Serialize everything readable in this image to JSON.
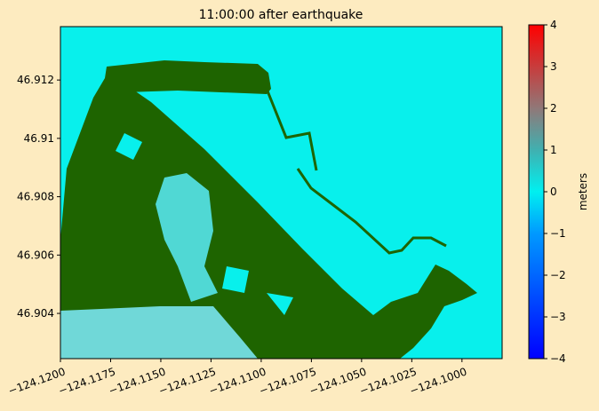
{
  "chart_data": {
    "type": "heatmap",
    "title": "11:00:00 after earthquake",
    "xlim": [
      -124.12,
      -124.098
    ],
    "xticks": [
      {
        "value": -124.12,
        "label": "−124.1200"
      },
      {
        "value": -124.1175,
        "label": "−124.1175"
      },
      {
        "value": -124.115,
        "label": "−124.1150"
      },
      {
        "value": -124.1125,
        "label": "−124.1125"
      },
      {
        "value": -124.11,
        "label": "−124.1100"
      },
      {
        "value": -124.1075,
        "label": "−124.1075"
      },
      {
        "value": -124.105,
        "label": "−124.1050"
      },
      {
        "value": -124.1025,
        "label": "−124.1025"
      },
      {
        "value": -124.1,
        "label": "−124.1000"
      }
    ],
    "ylim": [
      46.90245,
      46.91383
    ],
    "yticks": [
      46.904,
      46.906,
      46.908,
      46.91,
      46.912
    ],
    "yticklabels_note_free": null,
    "colorbar": {
      "label": "meters",
      "lim": [
        -4,
        4
      ],
      "ticks": [
        {
          "value": -4,
          "label": "−4"
        },
        {
          "value": -3,
          "label": "−3"
        },
        {
          "value": -2,
          "label": "−2"
        },
        {
          "value": -1,
          "label": "−1"
        },
        0,
        1,
        2,
        3,
        4
      ]
    }
  }
}
